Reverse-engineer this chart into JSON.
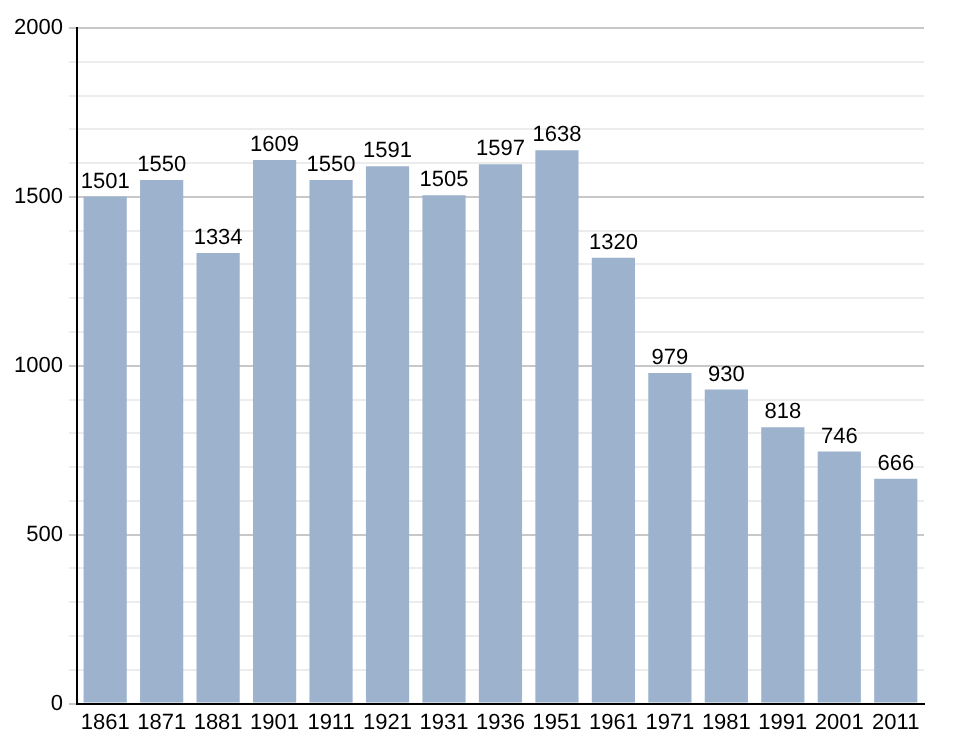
{
  "chart_data": {
    "type": "bar",
    "categories": [
      "1861",
      "1871",
      "1881",
      "1901",
      "1911",
      "1921",
      "1931",
      "1936",
      "1951",
      "1961",
      "1971",
      "1981",
      "1991",
      "2001",
      "2011"
    ],
    "values": [
      1501,
      1550,
      1334,
      1609,
      1550,
      1591,
      1505,
      1597,
      1638,
      1320,
      979,
      930,
      818,
      746,
      666
    ],
    "color": "#9db3cd",
    "ylim": [
      0,
      2000
    ],
    "yticks": [
      0,
      {
        "value": 100,
        "label": null
      },
      {
        "value": 200,
        "label": null
      },
      {
        "value": 300,
        "label": null
      },
      {
        "value": 400,
        "label": null
      },
      500,
      {
        "value": 600,
        "label": null
      },
      {
        "value": 700,
        "label": null
      },
      {
        "value": 800,
        "label": null
      },
      {
        "value": 900,
        "label": null
      },
      1000,
      {
        "value": 1100,
        "label": null
      },
      {
        "value": 1200,
        "label": null
      },
      {
        "value": 1300,
        "label": null
      },
      {
        "value": 1400,
        "label": null
      },
      1500,
      {
        "value": 1600,
        "label": null
      },
      {
        "value": 1700,
        "label": null
      },
      {
        "value": 1800,
        "label": null
      },
      {
        "value": 1900,
        "label": null
      },
      2000
    ],
    "grid": "y",
    "data_labels": true
  }
}
